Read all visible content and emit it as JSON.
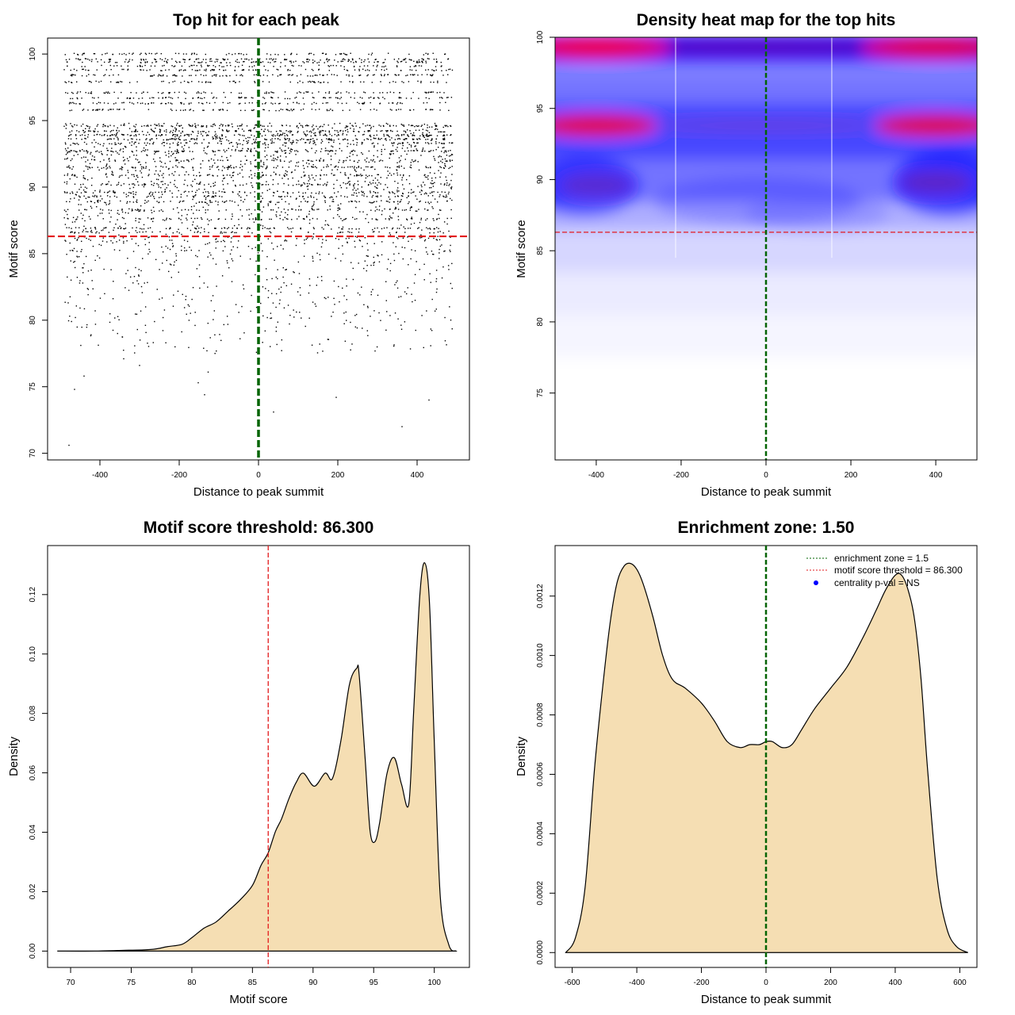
{
  "chart_data": [
    {
      "id": "scatter",
      "type": "scatter",
      "title": "Top hit for each peak",
      "xlabel": "Distance to peak summit",
      "ylabel": "Motif score",
      "xlim": [
        -532,
        532
      ],
      "ylim": [
        69.5,
        101.2
      ],
      "xticks": [
        "-400",
        "-200",
        "0",
        "200",
        "400"
      ],
      "xtick_values": [
        -400,
        -200,
        0,
        200,
        400
      ],
      "yticks": [
        "70",
        "75",
        "80",
        "85",
        "90",
        "95",
        "100"
      ],
      "ytick_values": [
        70,
        75,
        80,
        85,
        90,
        95,
        100
      ],
      "vline": {
        "x": 0,
        "color": "#006400",
        "style": "dashed"
      },
      "hline": {
        "y": 86.3,
        "color": "#e31a1c",
        "style": "dashed"
      },
      "point_color": "#000000",
      "distribution": {
        "x_range": [
          -490,
          490
        ],
        "dense_score_levels": [
          100.0,
          99.6,
          99.4,
          99.1,
          98.8,
          98.4,
          97.9,
          97.1,
          96.7,
          96.3,
          95.8,
          94.6,
          94.2,
          93.9,
          93.6,
          93.3,
          92.7,
          92.0,
          91.5,
          90.9,
          90.2,
          89.6,
          89.3,
          88.9,
          88.3,
          87.6,
          86.9,
          86.6
        ],
        "sparse_range": [
          70.5,
          86.3
        ],
        "outliers": [
          {
            "x": -478,
            "y": 70.6
          },
          {
            "x": -464,
            "y": 74.8
          },
          {
            "x": -440,
            "y": 75.8
          },
          {
            "x": 362,
            "y": 72.0
          },
          {
            "x": 38,
            "y": 73.1
          },
          {
            "x": 196,
            "y": 74.2
          },
          {
            "x": -136,
            "y": 74.4
          },
          {
            "x": 430,
            "y": 74.0
          },
          {
            "x": -300,
            "y": 76.6
          },
          {
            "x": -340,
            "y": 77.1
          },
          {
            "x": -127,
            "y": 76.1
          },
          {
            "x": -152,
            "y": 75.3
          }
        ]
      }
    },
    {
      "id": "heatmap",
      "type": "heatmap",
      "title": "Density heat map for the top hits",
      "xlabel": "Distance to peak summit",
      "ylabel": "Motif score",
      "xlim": [
        -497,
        497
      ],
      "ylim": [
        70.3,
        100.0
      ],
      "xticks": [
        "-400",
        "-200",
        "0",
        "200",
        "400"
      ],
      "xtick_values": [
        -400,
        -200,
        0,
        200,
        400
      ],
      "yticks": [
        "75",
        "80",
        "85",
        "90",
        "95",
        "100"
      ],
      "ytick_values": [
        75,
        80,
        85,
        90,
        95,
        100
      ],
      "vline": {
        "x": 0,
        "color": "#006400",
        "style": "dashed"
      },
      "hline": {
        "y": 86.3,
        "color": "#e31a1c",
        "style": "dashed"
      },
      "white_vlines": [
        -213,
        155
      ],
      "colors": [
        "#ffffff",
        "#0000ff",
        "#ff0000"
      ],
      "hotspots": [
        {
          "x": -400,
          "y": 99.3,
          "level": 1.0
        },
        {
          "x": 400,
          "y": 99.3,
          "level": 0.85
        },
        {
          "x": -400,
          "y": 93.8,
          "level": 0.8
        },
        {
          "x": 400,
          "y": 93.8,
          "level": 0.75
        },
        {
          "x": 400,
          "y": 89.8,
          "level": 0.6
        },
        {
          "x": -400,
          "y": 89.6,
          "level": 0.5
        }
      ]
    },
    {
      "id": "score_density",
      "type": "area",
      "title": "Motif score threshold: 86.300",
      "xlabel": "Motif score",
      "ylabel": "Density",
      "xlim": [
        68.1,
        102.9
      ],
      "ylim": [
        -0.0055,
        0.1365
      ],
      "xticks": [
        "70",
        "75",
        "80",
        "85",
        "90",
        "95",
        "100"
      ],
      "xtick_values": [
        70,
        75,
        80,
        85,
        90,
        95,
        100
      ],
      "yticks": [
        "0.00",
        "0.02",
        "0.04",
        "0.06",
        "0.08",
        "0.10",
        "0.12"
      ],
      "ytick_values": [
        0,
        0.02,
        0.04,
        0.06,
        0.08,
        0.1,
        0.12
      ],
      "fill_color": "#f5deb3",
      "vline": {
        "x": 86.3,
        "color": "#e31a1c",
        "style": "dashed"
      },
      "x": [
        68.9,
        72.0,
        74.8,
        76.0,
        77.0,
        78.0,
        79.2,
        80.0,
        81.0,
        82.0,
        83.0,
        84.0,
        85.0,
        85.7,
        86.3,
        86.9,
        87.4,
        88.0,
        88.6,
        89.2,
        90.1,
        91.0,
        91.6,
        92.3,
        93.0,
        93.6,
        93.8,
        94.3,
        94.7,
        95.1,
        95.5,
        96.1,
        96.7,
        97.3,
        97.9,
        98.3,
        98.8,
        99.2,
        99.6,
        100.0,
        100.5,
        101.2,
        101.8
      ],
      "y": [
        0.0,
        0.0,
        0.0003,
        0.0004,
        0.0007,
        0.0015,
        0.0023,
        0.0045,
        0.0077,
        0.0098,
        0.0135,
        0.0173,
        0.0221,
        0.0288,
        0.0331,
        0.0403,
        0.0445,
        0.0512,
        0.0567,
        0.0599,
        0.0555,
        0.0599,
        0.0581,
        0.0709,
        0.0897,
        0.0952,
        0.0931,
        0.0646,
        0.0406,
        0.0368,
        0.0434,
        0.0598,
        0.0651,
        0.0561,
        0.0496,
        0.0808,
        0.1193,
        0.1307,
        0.1175,
        0.0704,
        0.018,
        0.0021,
        0.0
      ]
    },
    {
      "id": "distance_density",
      "type": "area",
      "title": "Enrichment zone: 1.50",
      "xlabel": "Distance to peak summit",
      "ylabel": "Density",
      "xlim": [
        -653,
        653
      ],
      "ylim": [
        -5e-05,
        0.00137
      ],
      "xticks": [
        "-600",
        "-400",
        "-200",
        "0",
        "200",
        "400",
        "600"
      ],
      "xtick_values": [
        -600,
        -400,
        -200,
        0,
        200,
        400,
        600
      ],
      "yticks": [
        "0.0000",
        "0.0002",
        "0.0004",
        "0.0006",
        "0.0008",
        "0.0010",
        "0.0012"
      ],
      "ytick_values": [
        0,
        0.0002,
        0.0004,
        0.0006,
        0.0008,
        0.001,
        0.0012
      ],
      "fill_color": "#f5deb3",
      "vline": {
        "x": 0,
        "color": "#006400",
        "style": "dashed"
      },
      "x": [
        -620,
        -590,
        -560,
        -530,
        -500,
        -480,
        -460,
        -440,
        -420,
        -400,
        -380,
        -350,
        -320,
        -290,
        -250,
        -200,
        -160,
        -120,
        -80,
        -50,
        -20,
        0,
        20,
        50,
        80,
        110,
        150,
        200,
        250,
        300,
        340,
        370,
        400,
        420,
        440,
        460,
        480,
        500,
        530,
        560,
        590,
        625
      ],
      "y": [
        0.0,
        5e-05,
        0.00022,
        0.00063,
        0.00095,
        0.00113,
        0.00125,
        0.0013,
        0.00131,
        0.00129,
        0.00124,
        0.00113,
        0.001,
        0.00092,
        0.00089,
        0.00084,
        0.00078,
        0.00071,
        0.00069,
        0.0007,
        0.0007,
        0.00071,
        0.00071,
        0.00069,
        0.0007,
        0.00075,
        0.00082,
        0.00089,
        0.00096,
        0.00106,
        0.00115,
        0.00122,
        0.00127,
        0.00127,
        0.00122,
        0.00112,
        0.00092,
        0.00062,
        0.00025,
        8e-05,
        2e-05,
        0.0
      ],
      "legend": {
        "position": "top-right",
        "entries": [
          {
            "label": "enrichment zone = 1.5",
            "color": "#006400",
            "kind": "dotted-line"
          },
          {
            "label": "motif score threshold = 86.300",
            "color": "#e31a1c",
            "kind": "dotted-line"
          },
          {
            "label": "centrality p-val = NS",
            "color": "#0000ff",
            "kind": "point"
          }
        ]
      }
    }
  ]
}
